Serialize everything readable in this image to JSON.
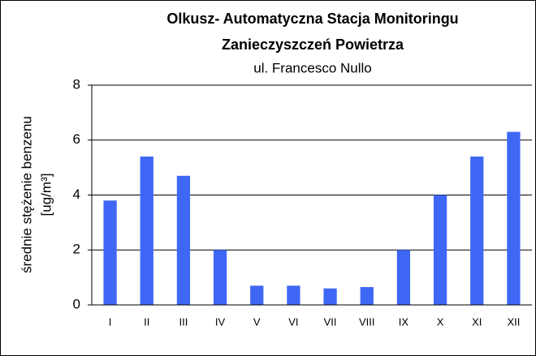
{
  "chart_data": {
    "type": "bar",
    "title": [
      "Olkusz- Automatyczna Stacja Monitoringu",
      "Zanieczyszczeń Powietrza"
    ],
    "subtitle": "ul. Francesco Nullo",
    "ylabel": [
      "średnie stężenie benzenu",
      "[ug/m³]"
    ],
    "categories": [
      "I",
      "II",
      "III",
      "IV",
      "V",
      "VI",
      "VII",
      "VIII",
      "IX",
      "X",
      "XI",
      "XII"
    ],
    "values": [
      3.8,
      5.4,
      4.7,
      2.0,
      0.7,
      0.7,
      0.6,
      0.65,
      2.0,
      4.0,
      5.4,
      6.3
    ],
    "color": "#3f67f5",
    "ylim": [
      0,
      8
    ],
    "yticks": [
      0,
      2,
      4,
      6,
      8
    ],
    "grid": true
  }
}
